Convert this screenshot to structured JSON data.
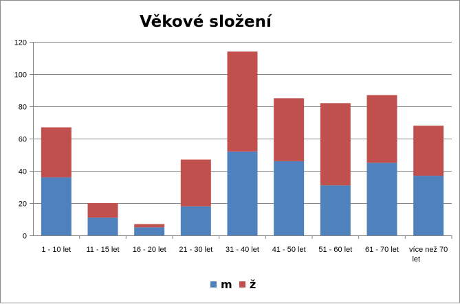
{
  "chart_data": {
    "type": "bar",
    "stacked": true,
    "title": "Věkové složení",
    "categories": [
      "1 - 10 let",
      "11 - 15 let",
      "16 - 20 let",
      "21 - 30 let",
      "31 - 40 let",
      "41 - 50 let",
      "51 - 60 let",
      "61 - 70 let",
      "více než 70 let"
    ],
    "series": [
      {
        "name": "m",
        "color": "#4f81bd",
        "values": [
          36,
          11,
          5,
          18,
          52,
          46,
          31,
          45,
          37
        ]
      },
      {
        "name": "ž",
        "color": "#c0504d",
        "values": [
          31,
          9,
          2,
          29,
          62,
          39,
          51,
          42,
          31
        ]
      }
    ],
    "ylim": [
      0,
      120
    ],
    "yticks": [
      0,
      20,
      40,
      60,
      80,
      100,
      120
    ],
    "grid": true,
    "legend": "bottom"
  }
}
